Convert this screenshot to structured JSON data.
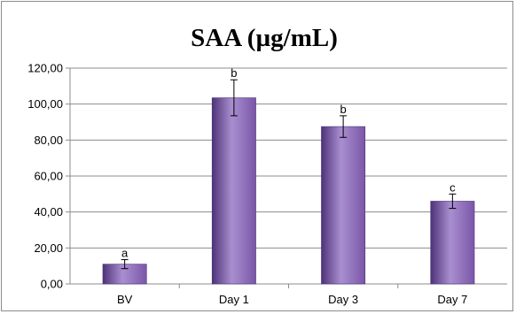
{
  "chart_data": {
    "type": "bar",
    "title": "SAA (µg/mL)",
    "xlabel": "",
    "ylabel": "",
    "categories": [
      "BV",
      "Day 1",
      "Day 3",
      "Day 7"
    ],
    "values": [
      11.0,
      103.5,
      87.5,
      46.0
    ],
    "error": [
      2.5,
      10.0,
      6.0,
      4.0
    ],
    "significance_letters": [
      "a",
      "b",
      "b",
      "c"
    ],
    "ylim": [
      0,
      120
    ],
    "yticks": [
      "0,00",
      "20,00",
      "40,00",
      "60,00",
      "80,00",
      "100,00",
      "120,00"
    ],
    "grid": true,
    "legend": "none",
    "colors": {
      "bar_fill": "#7a56a8",
      "bar_highlight": "#a98fd0",
      "bar_shadow": "#4e3278",
      "grid": "#8c8c8c"
    }
  }
}
